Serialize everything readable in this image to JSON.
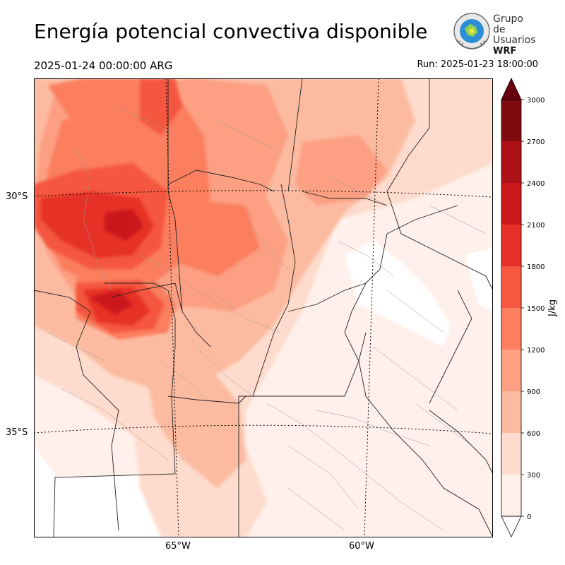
{
  "header": {
    "title": "Energía potencial convectiva disponible",
    "valid_time": "2025-01-24 00:00:00 ARG",
    "run_time": "Run: 2025-01-23 18:00:00"
  },
  "logo": {
    "line1": "Grupo de",
    "line2": "Usuarios",
    "line3": "WRF"
  },
  "map": {
    "lat_labels": [
      "30°S",
      "35°S"
    ],
    "lon_labels": [
      "65°W",
      "60°W"
    ]
  },
  "colorbar": {
    "unit": "J/kg",
    "ticks": [
      "0",
      "300",
      "600",
      "900",
      "1200",
      "1500",
      "1800",
      "2100",
      "2400",
      "2700",
      "3000"
    ],
    "colors": [
      "#fff0eb",
      "#fedbcc",
      "#fcbba1",
      "#fc9f83",
      "#fb7e5f",
      "#f5573f",
      "#e63027",
      "#cb181d",
      "#ae1117",
      "#800b0f"
    ]
  }
}
